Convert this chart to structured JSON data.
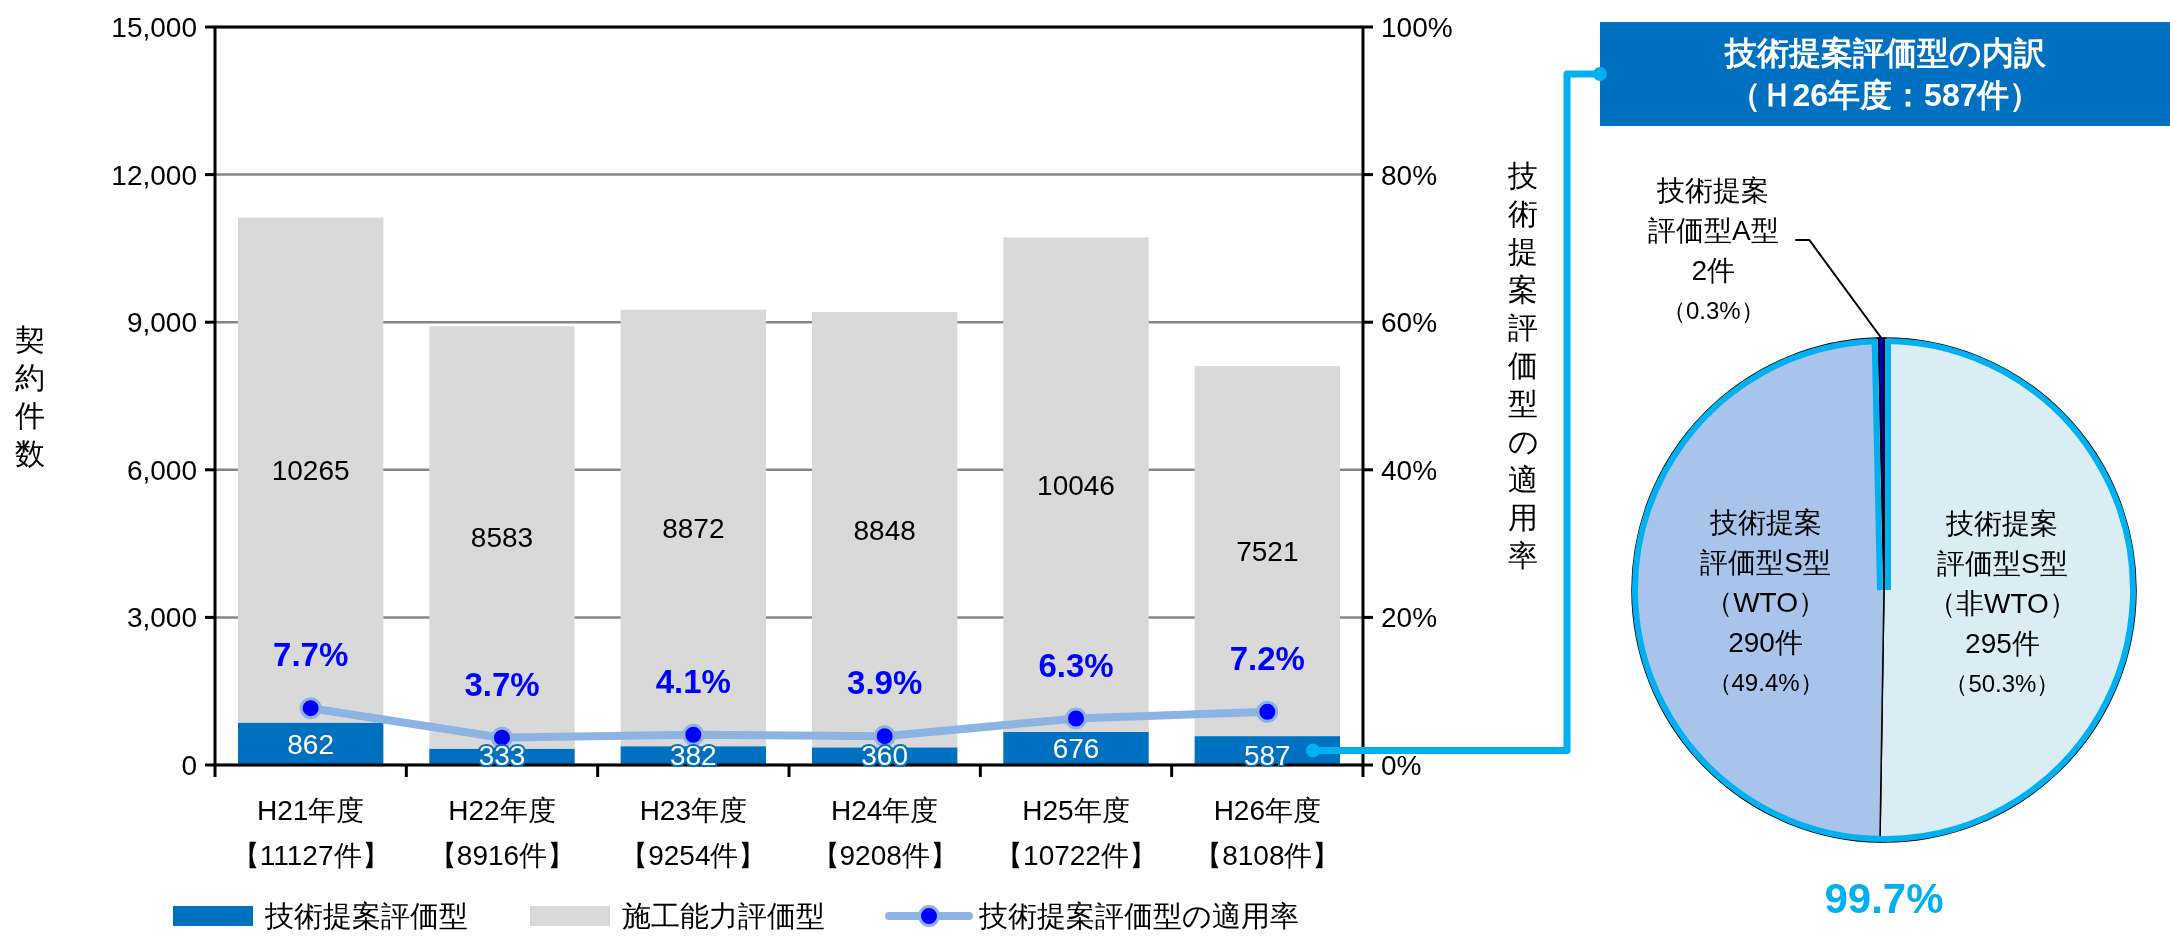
{
  "chart_data": [
    {
      "type": "bar",
      "stacked": true,
      "categories": [
        "H21年度【11127件】",
        "H22年度【8916件】",
        "H23年度【9254件】",
        "H24年度【9208件】",
        "H25年度【10722件】",
        "H26年度【8108件】"
      ],
      "series": [
        {
          "name": "技術提案評価型",
          "type": "bar",
          "color": "#0070c0",
          "values": [
            862,
            333,
            382,
            360,
            676,
            587
          ]
        },
        {
          "name": "施工能力評価型",
          "type": "bar",
          "color": "#d9d9d9",
          "values": [
            10265,
            8583,
            8872,
            8848,
            10046,
            7521
          ]
        },
        {
          "name": "技術提案評価型の適用率",
          "type": "line",
          "axis": "y2",
          "color": "#8db3e2",
          "values": [
            7.7,
            3.7,
            4.1,
            3.9,
            6.3,
            7.2
          ],
          "value_labels": [
            "7.7%",
            "3.7%",
            "4.1%",
            "3.9%",
            "6.3%",
            "7.2%"
          ]
        }
      ],
      "ylabel": "契約件数",
      "y2label": "技術提案評価型の適用率",
      "ylim": [
        0,
        15000
      ],
      "yticks": [
        0,
        {
          "value": 3000,
          "label": "3,000"
        },
        {
          "value": 6000,
          "label": "6,000"
        },
        {
          "value": 9000,
          "label": "9,000"
        },
        {
          "value": 12000,
          "label": "12,000"
        },
        {
          "value": 15000,
          "label": "15,000"
        }
      ],
      "y2lim": [
        0,
        100
      ],
      "y2ticks": [
        {
          "value": 0,
          "label": "0%"
        },
        {
          "value": 20,
          "label": "20%"
        },
        {
          "value": 40,
          "label": "40%"
        },
        {
          "value": 60,
          "label": "60%"
        },
        {
          "value": 80,
          "label": "80%"
        },
        {
          "value": 100,
          "label": "100%"
        }
      ],
      "grid": "y",
      "legend": "bottom",
      "data_labels": true,
      "marker": "circle",
      "line_style": "solid"
    },
    {
      "type": "pie",
      "title": "技術提案評価型の内訳（Ｈ26年度：587件）",
      "categories": [
        "技術提案評価型S型（非WTO）",
        "技術提案評価型S型（WTO）",
        "技術提案評価型A型"
      ],
      "values": [
        295,
        290,
        2
      ],
      "colors": [
        "#daedf4",
        "#a9c4eb",
        "#0000c0"
      ],
      "value_labels": [
        "295件（50.3%）",
        "290件（49.4%）",
        "2件（0.3%）"
      ],
      "annotations": [
        "99.7%"
      ]
    }
  ]
}
